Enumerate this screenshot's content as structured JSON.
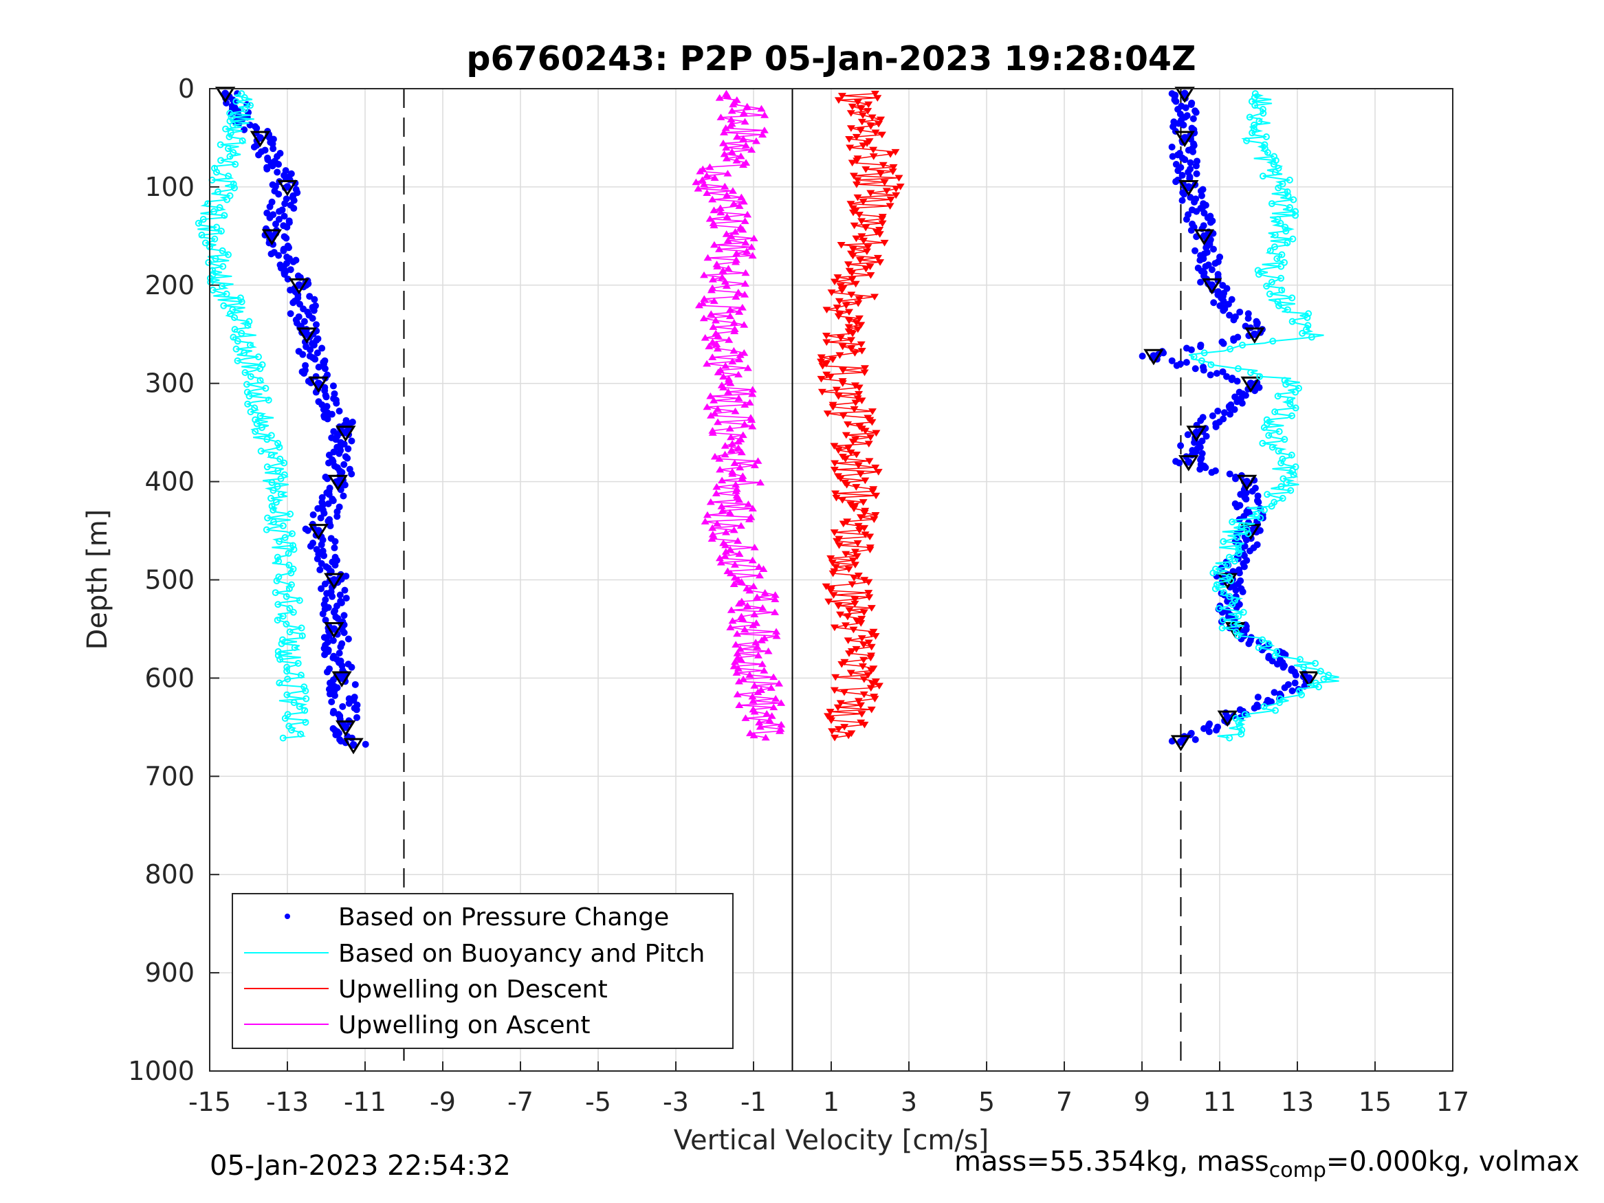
{
  "chart_data": {
    "type": "scatter",
    "title": "p6760243: P2P 05-Jan-2023 19:28:04Z",
    "xlabel": "Vertical Velocity [cm/s]",
    "ylabel": "Depth [m]",
    "xlim": [
      -15,
      17
    ],
    "ylim": [
      0,
      1000
    ],
    "y_reversed": true,
    "xticks": [
      -15,
      -13,
      -11,
      -9,
      -7,
      -5,
      -3,
      -1,
      1,
      3,
      5,
      7,
      9,
      11,
      13,
      15,
      17
    ],
    "yticks": [
      0,
      100,
      200,
      300,
      400,
      500,
      600,
      700,
      800,
      900,
      1000
    ],
    "grid": true,
    "legend_position": "bottom-left",
    "reference_lines": [
      {
        "x": -10,
        "style": "dashed"
      },
      {
        "x": 10,
        "style": "dashed"
      },
      {
        "x": 0,
        "style": "solid"
      }
    ],
    "colors": {
      "pressure": "#0000ff",
      "buoyancy": "#00ffff",
      "upwelling_descent": "#ff0000",
      "upwelling_ascent": "#ff00ff"
    },
    "series": [
      {
        "name": "Based on Pressure Change",
        "style": "dots",
        "color": "#0000ff",
        "segments": [
          {
            "depth": [
              5,
              50,
              100,
              150,
              200,
              250,
              300,
              350,
              400,
              450,
              500,
              550,
              600,
              650,
              668
            ],
            "velocity": [
              -14.6,
              -13.7,
              -13.0,
              -13.4,
              -12.7,
              -12.5,
              -12.2,
              -11.5,
              -11.7,
              -12.2,
              -11.8,
              -11.8,
              -11.6,
              -11.5,
              -11.3
            ]
          },
          {
            "depth": [
              5,
              50,
              100,
              150,
              200,
              250,
              272,
              300,
              350,
              380,
              400,
              450,
              500,
              550,
              600,
              640,
              665
            ],
            "velocity": [
              10.1,
              10.1,
              10.2,
              10.6,
              10.8,
              11.9,
              9.3,
              11.8,
              10.4,
              10.2,
              11.7,
              11.8,
              11.2,
              11.4,
              13.3,
              11.2,
              10.0
            ]
          }
        ]
      },
      {
        "name": "Based on Buoyancy and Pitch",
        "style": "line",
        "color": "#00ffff",
        "segments": [
          {
            "depth": [
              5,
              140,
              200,
              250,
              300,
              350,
              400,
              450,
              500,
              550,
              600,
              662
            ],
            "velocity": [
              -14.0,
              -15.0,
              -14.7,
              -14.1,
              -13.8,
              -13.6,
              -13.3,
              -13.2,
              -13.0,
              -12.9,
              -12.9,
              -12.8
            ]
          },
          {
            "depth": [
              5,
              50,
              100,
              150,
              200,
              250,
              272,
              300,
              350,
              400,
              450,
              500,
              550,
              600,
              640,
              662
            ],
            "velocity": [
              12.2,
              11.9,
              12.6,
              12.6,
              12.2,
              13.5,
              10.2,
              13.0,
              12.3,
              12.8,
              11.4,
              11.1,
              11.4,
              13.9,
              11.7,
              11.2
            ]
          }
        ]
      },
      {
        "name": "Upwelling on Descent",
        "style": "triangle-down",
        "color": "#ff0000",
        "segments": [
          {
            "depth": [
              5,
              50,
              100,
              150,
              200,
              250,
              300,
              350,
              400,
              450,
              500,
              550,
              600,
              640,
              662
            ],
            "velocity": [
              1.6,
              2.0,
              2.2,
              1.9,
              1.6,
              1.3,
              1.3,
              1.6,
              1.7,
              1.6,
              1.4,
              1.6,
              1.7,
              1.5,
              1.5
            ]
          }
        ]
      },
      {
        "name": "Upwelling on Ascent",
        "style": "triangle-up",
        "color": "#ff00ff",
        "segments": [
          {
            "depth": [
              5,
              50,
              100,
              150,
              200,
              250,
              300,
              350,
              400,
              450,
              500,
              550,
              600,
              640,
              662
            ],
            "velocity": [
              -1.3,
              -1.3,
              -2.0,
              -1.5,
              -1.8,
              -1.8,
              -1.6,
              -1.6,
              -1.3,
              -1.8,
              -1.0,
              -1.0,
              -0.9,
              -0.8,
              -0.8
            ]
          }
        ]
      }
    ]
  },
  "footer": {
    "timestamp": "05-Jan-2023 22:54:32",
    "mass_prefix": "mass=55.354kg, mass",
    "mass_sub": "comp",
    "mass_suffix": "=0.000kg, volmax"
  }
}
